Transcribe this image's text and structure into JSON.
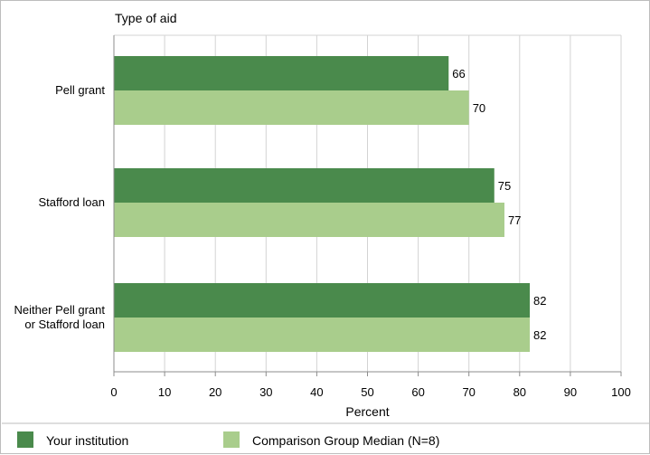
{
  "chart_data": {
    "type": "bar",
    "orientation": "horizontal",
    "ylabel": "Type of aid",
    "xlabel": "Percent",
    "xlim": [
      0,
      100
    ],
    "xticks": [
      "0",
      "10",
      "20",
      "30",
      "40",
      "50",
      "60",
      "70",
      "80",
      "90",
      "100"
    ],
    "categories": [
      [
        "Pell grant"
      ],
      [
        "Stafford loan"
      ],
      [
        "Neither Pell grant",
        "or Stafford loan"
      ]
    ],
    "series": [
      {
        "name": "Your institution",
        "color": "#4a8a4c",
        "values": [
          66,
          75,
          82
        ]
      },
      {
        "name": "Comparison Group Median (N=8)",
        "color": "#a9cd8c",
        "values": [
          70,
          77,
          82
        ]
      }
    ],
    "grid": true,
    "legend_position": "bottom"
  }
}
